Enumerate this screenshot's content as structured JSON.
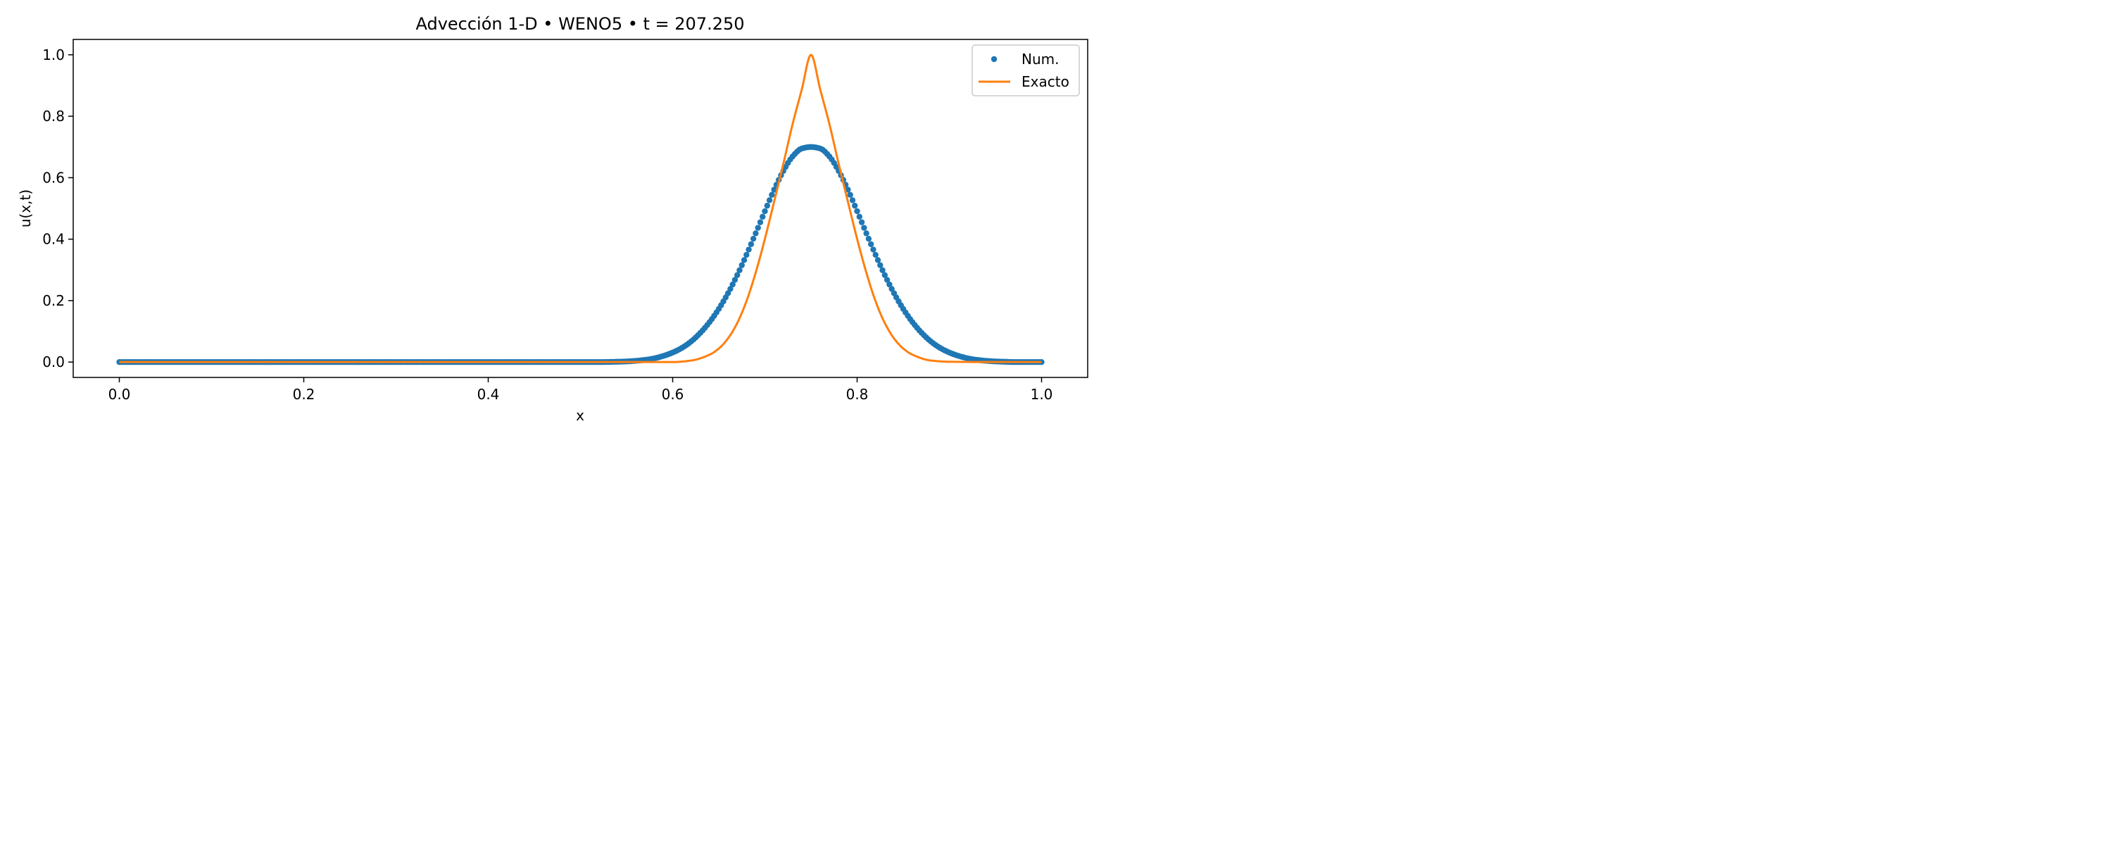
{
  "chart_data": {
    "type": "line",
    "title": "Advección 1-D • WENO5 • t = 207.250",
    "xlabel": "x",
    "ylabel": "u(x,t)",
    "xlim": [
      -0.05,
      1.05
    ],
    "ylim": [
      -0.05,
      1.05
    ],
    "xticks": [
      0.0,
      0.2,
      0.4,
      0.6,
      0.8,
      1.0
    ],
    "xtick_labels": [
      "0.0",
      "0.2",
      "0.4",
      "0.6",
      "0.8",
      "1.0"
    ],
    "yticks": [
      0.0,
      0.2,
      0.4,
      0.6,
      0.8,
      1.0
    ],
    "ytick_labels": [
      "0.0",
      "0.2",
      "0.4",
      "0.6",
      "0.8",
      "1.0"
    ],
    "grid": false,
    "legend": "top-right",
    "series": [
      {
        "name": "Num.",
        "style": "markers",
        "color": "#1f77b4",
        "x": [
          0.0,
          0.02,
          0.04,
          0.06,
          0.08,
          0.1,
          0.12,
          0.14,
          0.16,
          0.18,
          0.2,
          0.22,
          0.24,
          0.26,
          0.28,
          0.3,
          0.32,
          0.34,
          0.36,
          0.38,
          0.4,
          0.42,
          0.44,
          0.46,
          0.48,
          0.5,
          0.52,
          0.54,
          0.55,
          0.56,
          0.57,
          0.58,
          0.59,
          0.6,
          0.61,
          0.62,
          0.63,
          0.64,
          0.65,
          0.66,
          0.67,
          0.68,
          0.69,
          0.7,
          0.71,
          0.72,
          0.73,
          0.74,
          0.75,
          0.76,
          0.77,
          0.78,
          0.79,
          0.8,
          0.81,
          0.82,
          0.83,
          0.84,
          0.85,
          0.86,
          0.87,
          0.88,
          0.89,
          0.9,
          0.91,
          0.92,
          0.93,
          0.94,
          0.95,
          0.96,
          0.97,
          0.98,
          0.99,
          1.0
        ],
        "y": [
          0.0,
          0.0,
          0.0,
          0.0,
          0.0,
          0.0,
          0.0,
          0.0,
          0.0,
          0.0,
          0.0,
          0.0,
          0.0,
          0.0,
          0.0,
          0.0,
          0.0,
          0.0,
          0.0,
          0.0,
          0.0,
          0.0,
          0.0,
          0.0,
          0.0,
          0.0,
          0.0,
          0.001,
          0.002,
          0.004,
          0.007,
          0.012,
          0.02,
          0.031,
          0.046,
          0.067,
          0.095,
          0.13,
          0.173,
          0.224,
          0.283,
          0.349,
          0.419,
          0.491,
          0.561,
          0.622,
          0.669,
          0.695,
          0.7,
          0.695,
          0.669,
          0.622,
          0.561,
          0.491,
          0.419,
          0.349,
          0.283,
          0.224,
          0.173,
          0.13,
          0.095,
          0.067,
          0.046,
          0.031,
          0.02,
          0.012,
          0.007,
          0.004,
          0.002,
          0.001,
          0.0,
          0.0,
          0.0,
          0.0
        ]
      },
      {
        "name": "Exacto",
        "style": "line",
        "color": "#ff7f0e",
        "x": [
          0.0,
          0.05,
          0.1,
          0.15,
          0.2,
          0.25,
          0.3,
          0.35,
          0.4,
          0.45,
          0.5,
          0.55,
          0.6,
          0.62,
          0.64,
          0.65,
          0.66,
          0.67,
          0.68,
          0.69,
          0.7,
          0.71,
          0.72,
          0.73,
          0.74,
          0.75,
          0.76,
          0.77,
          0.78,
          0.79,
          0.8,
          0.81,
          0.82,
          0.83,
          0.84,
          0.85,
          0.86,
          0.88,
          0.9,
          0.95,
          1.0
        ],
        "y": [
          0.0,
          0.0,
          0.0,
          0.0,
          0.0,
          0.0,
          0.0,
          0.0,
          0.0,
          0.0,
          0.0,
          0.0,
          0.0,
          0.005,
          0.024,
          0.044,
          0.077,
          0.127,
          0.198,
          0.291,
          0.401,
          0.522,
          0.645,
          0.774,
          0.887,
          1.0,
          0.887,
          0.774,
          0.645,
          0.522,
          0.401,
          0.291,
          0.198,
          0.127,
          0.077,
          0.044,
          0.024,
          0.005,
          0.001,
          0.0,
          0.0
        ]
      }
    ]
  }
}
